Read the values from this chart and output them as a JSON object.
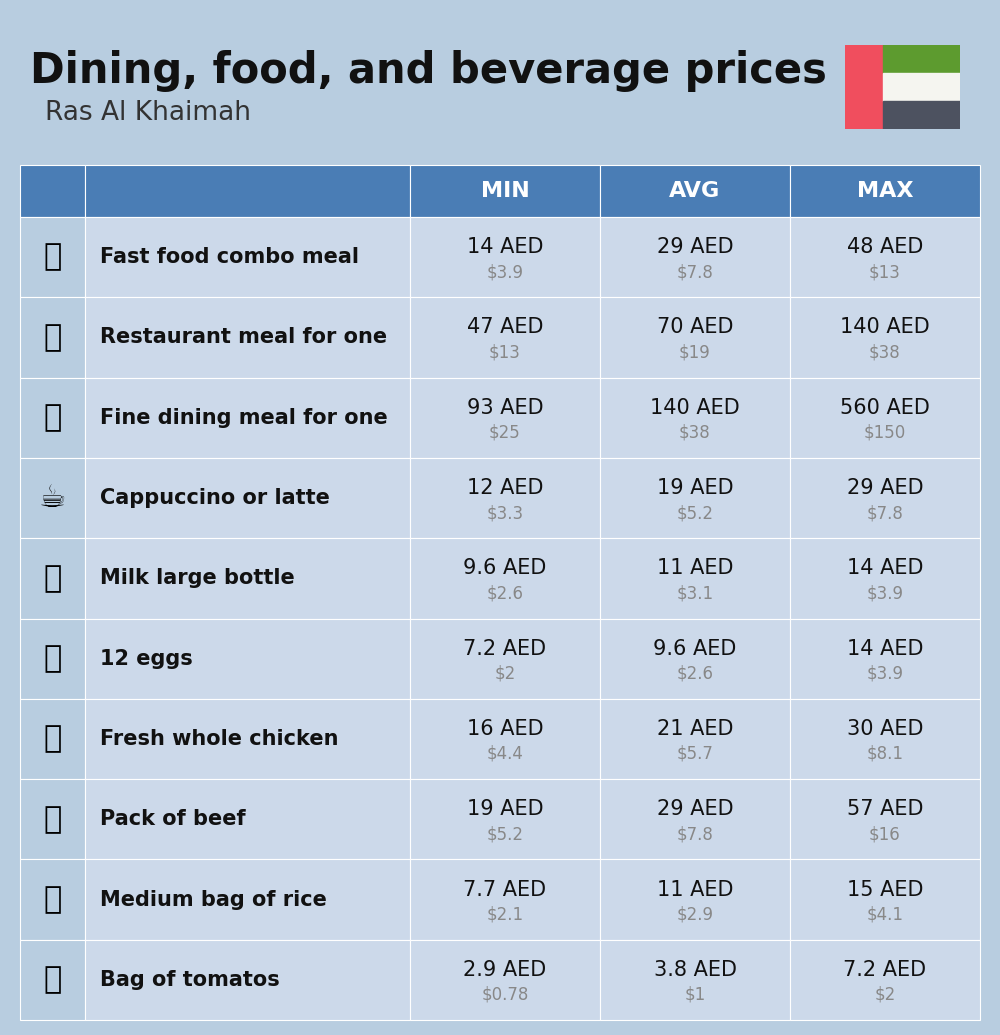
{
  "title": "Dining, food, and beverage prices",
  "subtitle": "Ras Al Khaimah",
  "bg_color": "#b8cde0",
  "header_color": "#4a7db5",
  "header_text_color": "#ffffff",
  "row_color": "#ccd9ea",
  "icon_col_color": "#b8cde0",
  "label_col_color": "#ccd9ea",
  "value_col_color": "#ccd9ea",
  "flag_red": "#F04E5E",
  "flag_green": "#5D9B2F",
  "flag_white": "#F5F5F0",
  "flag_dark": "#4D5260",
  "columns": [
    "MIN",
    "AVG",
    "MAX"
  ],
  "rows": [
    {
      "label": "Fast food combo meal",
      "min_aed": "14 AED",
      "min_usd": "$3.9",
      "avg_aed": "29 AED",
      "avg_usd": "$7.8",
      "max_aed": "48 AED",
      "max_usd": "$13"
    },
    {
      "label": "Restaurant meal for one",
      "min_aed": "47 AED",
      "min_usd": "$13",
      "avg_aed": "70 AED",
      "avg_usd": "$19",
      "max_aed": "140 AED",
      "max_usd": "$38"
    },
    {
      "label": "Fine dining meal for one",
      "min_aed": "93 AED",
      "min_usd": "$25",
      "avg_aed": "140 AED",
      "avg_usd": "$38",
      "max_aed": "560 AED",
      "max_usd": "$150"
    },
    {
      "label": "Cappuccino or latte",
      "min_aed": "12 AED",
      "min_usd": "$3.3",
      "avg_aed": "19 AED",
      "avg_usd": "$5.2",
      "max_aed": "29 AED",
      "max_usd": "$7.8"
    },
    {
      "label": "Milk large bottle",
      "min_aed": "9.6 AED",
      "min_usd": "$2.6",
      "avg_aed": "11 AED",
      "avg_usd": "$3.1",
      "max_aed": "14 AED",
      "max_usd": "$3.9"
    },
    {
      "label": "12 eggs",
      "min_aed": "7.2 AED",
      "min_usd": "$2",
      "avg_aed": "9.6 AED",
      "avg_usd": "$2.6",
      "max_aed": "14 AED",
      "max_usd": "$3.9"
    },
    {
      "label": "Fresh whole chicken",
      "min_aed": "16 AED",
      "min_usd": "$4.4",
      "avg_aed": "21 AED",
      "avg_usd": "$5.7",
      "max_aed": "30 AED",
      "max_usd": "$8.1"
    },
    {
      "label": "Pack of beef",
      "min_aed": "19 AED",
      "min_usd": "$5.2",
      "avg_aed": "29 AED",
      "avg_usd": "$7.8",
      "max_aed": "57 AED",
      "max_usd": "$16"
    },
    {
      "label": "Medium bag of rice",
      "min_aed": "7.7 AED",
      "min_usd": "$2.1",
      "avg_aed": "11 AED",
      "avg_usd": "$2.9",
      "max_aed": "15 AED",
      "max_usd": "$4.1"
    },
    {
      "label": "Bag of tomatos",
      "min_aed": "2.9 AED",
      "min_usd": "$0.78",
      "avg_aed": "3.8 AED",
      "avg_usd": "$1",
      "max_aed": "7.2 AED",
      "max_usd": "$2"
    }
  ],
  "icon_texts": [
    "🍔",
    "🍳",
    "🍽",
    "☕",
    "🥛",
    "🥚",
    "🐔",
    "🥩",
    "🍚",
    "🍅"
  ],
  "title_fontsize": 30,
  "subtitle_fontsize": 19,
  "header_fontsize": 16,
  "label_fontsize": 15,
  "value_fontsize": 15,
  "usd_fontsize": 12
}
